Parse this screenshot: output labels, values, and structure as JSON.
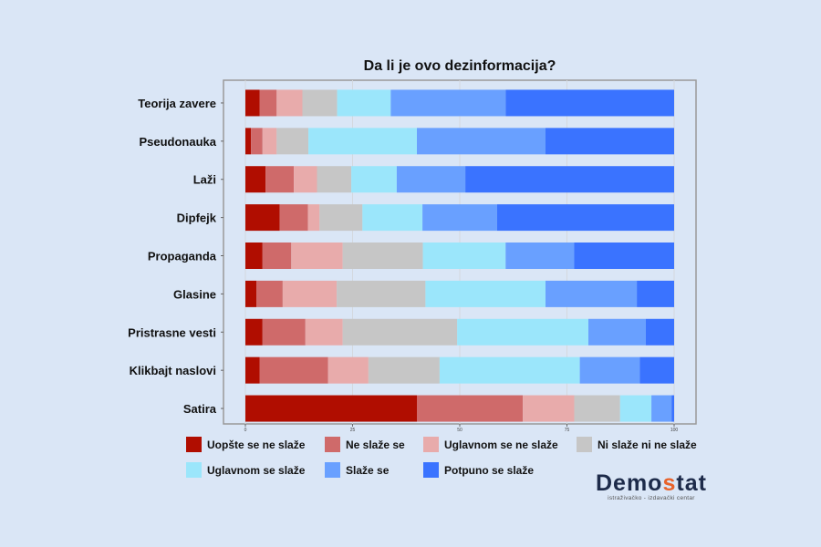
{
  "chart_data": {
    "type": "bar",
    "orientation": "horizontal",
    "stacked": true,
    "title": "Da li je ovo dezinformacija?",
    "xlim": [
      0,
      100
    ],
    "xticks": [
      "0",
      "25",
      "50",
      "75",
      "100"
    ],
    "grid": true,
    "legend_placement": "bottom",
    "categories": [
      "Teorija zavere",
      "Pseudonauka",
      "Laži",
      "Dipfejk",
      "Propaganda",
      "Glasine",
      "Pristrasne vesti",
      "Klikbajt naslovi",
      "Satira"
    ],
    "series": [
      {
        "name": "Uopšte se ne slaže",
        "color": "#b00d00",
        "values": [
          3.3,
          1.3,
          4.7,
          8.0,
          4.0,
          2.6,
          4.0,
          3.3,
          40.0
        ]
      },
      {
        "name": "Ne slaže se",
        "color": "#cf6a6a",
        "values": [
          4.0,
          2.7,
          6.6,
          6.6,
          6.7,
          6.1,
          10.0,
          16.0,
          24.7
        ]
      },
      {
        "name": "Uglavnom se ne slaže",
        "color": "#e8abab",
        "values": [
          6.0,
          3.3,
          5.4,
          2.7,
          12.0,
          12.6,
          8.7,
          9.4,
          12.0
        ]
      },
      {
        "name": "Ni slaže ni ne slaže",
        "color": "#c6c6c6",
        "values": [
          8.1,
          7.4,
          8.0,
          10.0,
          18.7,
          20.7,
          26.7,
          16.6,
          10.7
        ]
      },
      {
        "name": "Uglavnom se slaže",
        "color": "#9be6fb",
        "values": [
          12.5,
          25.3,
          10.6,
          14.0,
          19.3,
          28.0,
          30.6,
          32.7,
          7.3
        ]
      },
      {
        "name": "Slaže se",
        "color": "#69a0ff",
        "values": [
          26.8,
          30.0,
          16.0,
          17.4,
          16.0,
          21.3,
          13.4,
          14.0,
          4.7
        ]
      },
      {
        "name": "Potpuno se slaže",
        "color": "#3a73ff",
        "values": [
          39.3,
          30.0,
          48.7,
          41.3,
          23.3,
          8.7,
          6.6,
          8.0,
          0.6
        ]
      }
    ]
  },
  "logo": {
    "name_a": "Demo",
    "name_s": "s",
    "name_b": "tat",
    "tagline": "istraživačko - izdavački  centar"
  }
}
